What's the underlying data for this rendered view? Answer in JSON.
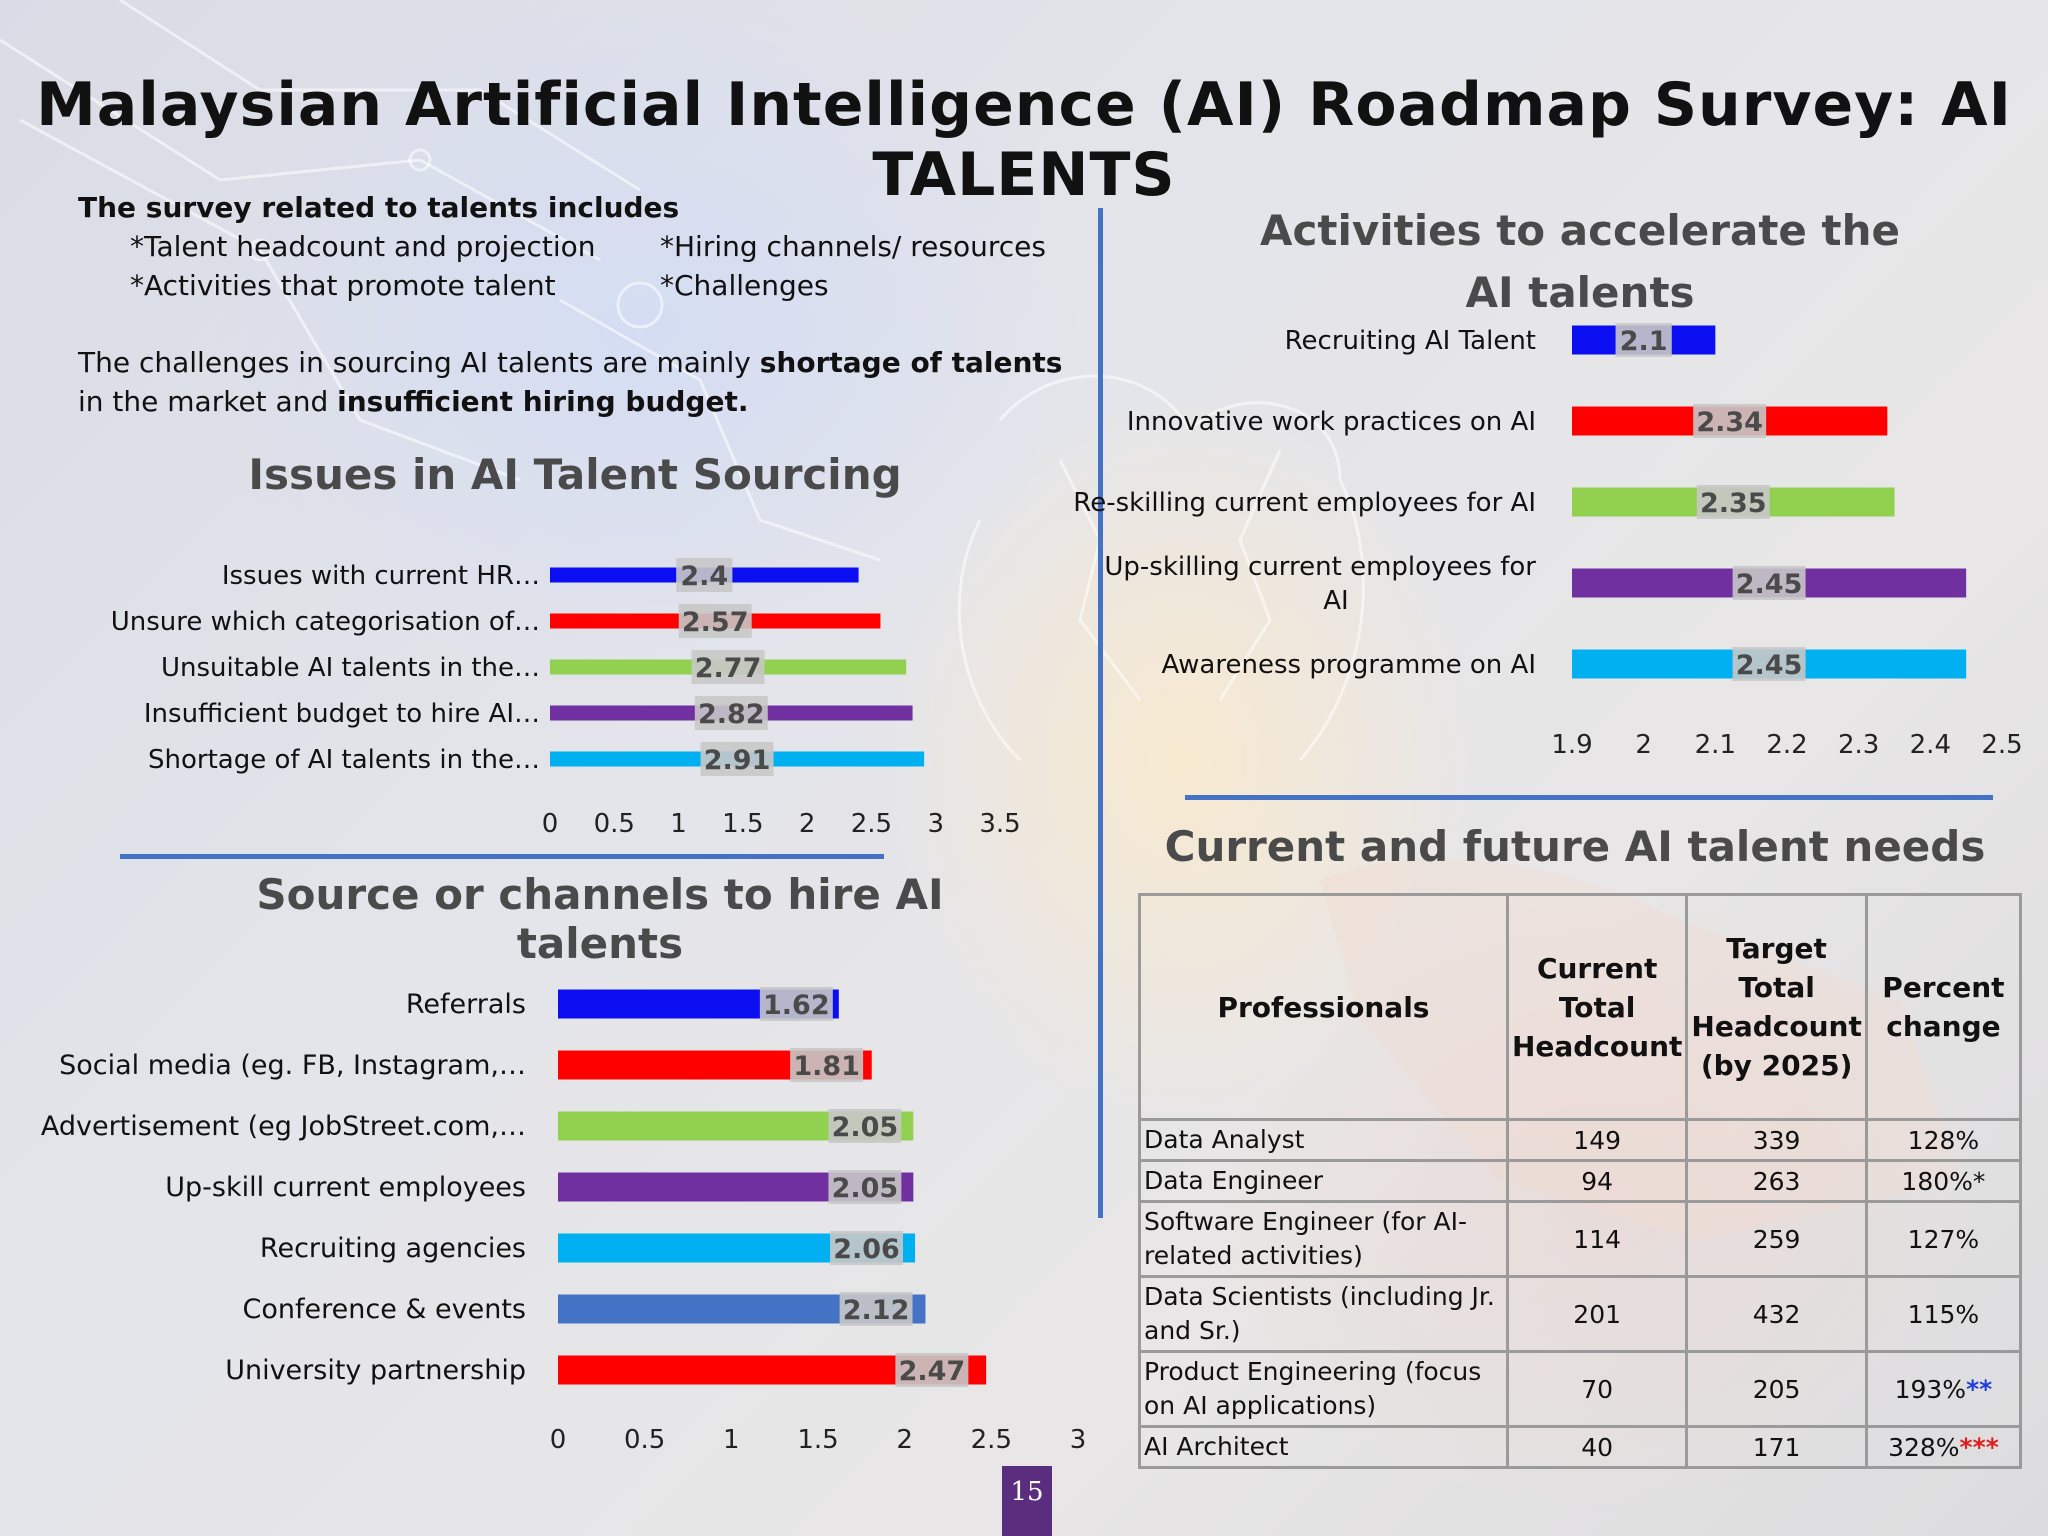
{
  "title": "Malaysian Artificial Intelligence (AI) Roadmap Survey: AI TALENTS",
  "intro": {
    "heading": "The survey related to talents includes",
    "bullets": [
      "*Talent headcount and projection",
      "*Hiring channels/ resources",
      "*Activities that promote talent",
      "*Challenges"
    ],
    "sentence_pre": "The challenges in sourcing AI talents are mainly ",
    "sentence_bold1": "shortage of talents",
    "sentence_mid": " in the market and ",
    "sentence_bold2": "insufficient hiring budget."
  },
  "colors": {
    "blue": "#0a0ef0",
    "red": "#ff0000",
    "green": "#92d050",
    "purple": "#7030a0",
    "cyan": "#00b0f0",
    "steel": "#4472c4",
    "label_bg": "#c8c8c8",
    "divider": "#4472c4"
  },
  "chart_data": [
    {
      "id": "issues",
      "type": "bar",
      "orientation": "horizontal",
      "title": "Issues in AI Talent Sourcing",
      "categories": [
        "Issues with current HR…",
        "Unsure which categorisation of…",
        "Unsuitable AI talents in the…",
        "Insufficient budget to hire AI…",
        "Shortage of AI talents in the…"
      ],
      "values": [
        2.4,
        2.57,
        2.77,
        2.82,
        2.91
      ],
      "data_labels": [
        "2.4",
        "2.57",
        "2.77",
        "2.82",
        "2.91"
      ],
      "bar_colors": [
        "#0a0ef0",
        "#ff0000",
        "#92d050",
        "#7030a0",
        "#00b0f0"
      ],
      "xlim": [
        0,
        3.5
      ],
      "ticks": [
        "0",
        "0.5",
        "1",
        "1.5",
        "2",
        "2.5",
        "3",
        "3.5"
      ]
    },
    {
      "id": "activities",
      "type": "bar",
      "orientation": "horizontal",
      "title": "Activities to accelerate the AI talents",
      "categories": [
        "Recruiting AI Talent",
        "Innovative work practices on AI",
        "Re-skilling current employees for AI",
        "Up-skilling current employees for AI",
        "Awareness programme on AI"
      ],
      "values": [
        2.1,
        2.34,
        2.35,
        2.45,
        2.45
      ],
      "data_labels": [
        "2.1",
        "2.34",
        "2.35",
        "2.45",
        "2.45"
      ],
      "bar_colors": [
        "#0a0ef0",
        "#ff0000",
        "#92d050",
        "#7030a0",
        "#00b0f0"
      ],
      "xlim": [
        1.9,
        2.5
      ],
      "ticks": [
        "1.9",
        "2",
        "2.1",
        "2.2",
        "2.3",
        "2.4",
        "2.5"
      ]
    },
    {
      "id": "channels",
      "type": "bar",
      "orientation": "horizontal",
      "title": "Source or channels to hire AI talents",
      "categories": [
        "Referrals",
        "Social media (eg. FB, Instagram,…",
        "Advertisement (eg JobStreet.com,…",
        "Up-skill current employees",
        "Recruiting agencies",
        "Conference &  events",
        "University partnership"
      ],
      "values": [
        1.62,
        1.81,
        2.05,
        2.05,
        2.06,
        2.12,
        2.47
      ],
      "data_labels": [
        "1.62",
        "1.81",
        "2.05",
        "2.05",
        "2.06",
        "2.12",
        "2.47"
      ],
      "bar_colors": [
        "#0a0ef0",
        "#ff0000",
        "#92d050",
        "#7030a0",
        "#00b0f0",
        "#4472c4",
        "#ff0000"
      ],
      "xlim": [
        0,
        3
      ],
      "ticks": [
        "0",
        "0.5",
        "1",
        "1.5",
        "2",
        "2.5",
        "3"
      ]
    },
    {
      "id": "needs",
      "type": "table",
      "title": "Current and future AI talent needs",
      "columns": [
        "Professionals",
        "Current Total Headcount",
        "Target Total Headcount (by 2025)",
        "Percent change"
      ],
      "rows": [
        {
          "prof": "Data Analyst",
          "current": "149",
          "target": "339",
          "pct": "128%",
          "mark": "",
          "mark_color": ""
        },
        {
          "prof": "Data Engineer",
          "current": "94",
          "target": "263",
          "pct": "180%*",
          "mark": "",
          "mark_color": ""
        },
        {
          "prof": "Software Engineer (for AI-related activities)",
          "current": "114",
          "target": "259",
          "pct": "127%",
          "mark": "",
          "mark_color": ""
        },
        {
          "prof": "Data Scientists (including Jr. and Sr.)",
          "current": "201",
          "target": "432",
          "pct": "115%",
          "mark": "",
          "mark_color": ""
        },
        {
          "prof": "Product Engineering (focus on AI applications)",
          "current": "70",
          "target": "205",
          "pct": "193%",
          "mark": "**",
          "mark_color": "blue"
        },
        {
          "prof": "AI Architect",
          "current": "40",
          "target": "171",
          "pct": "328%",
          "mark": "***",
          "mark_color": "red"
        }
      ]
    }
  ],
  "page_number": "15"
}
